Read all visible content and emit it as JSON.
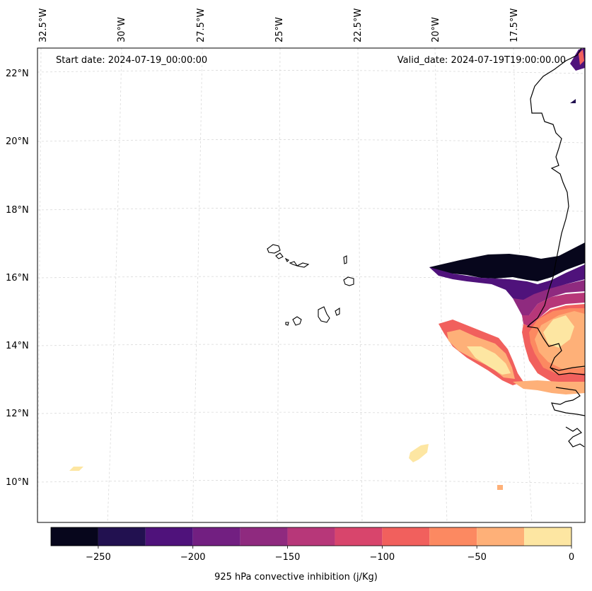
{
  "header": {
    "start_date": "Start date: 2024-07-19_00:00:00",
    "valid_date": "Valid_date: 2024-07-19T19:00:00.00"
  },
  "longitude_labels": [
    "32.5°W",
    "30°W",
    "27.5°W",
    "25°W",
    "22.5°W",
    "20°W",
    "17.5°W"
  ],
  "latitude_labels": [
    "22°N",
    "20°N",
    "18°N",
    "16°N",
    "14°N",
    "12°N",
    "10°N"
  ],
  "colorbar": {
    "title": "925 hPa convective inhibition (j/Kg)",
    "tick_labels": [
      "−250",
      "−200",
      "−150",
      "−100",
      "−50",
      "0"
    ],
    "levels": [
      -275,
      -250,
      -225,
      -200,
      -175,
      -150,
      -125,
      -100,
      -75,
      -50,
      -25,
      0
    ],
    "colors": [
      "#07061c",
      "#221150",
      "#4f127b",
      "#721f81",
      "#8f2a7f",
      "#b73779",
      "#d8456c",
      "#f1605d",
      "#fc8961",
      "#feb078",
      "#fde6a2"
    ]
  },
  "map_features": {
    "coastline": "coastline",
    "islands": "cape-verde-islands",
    "cin_field": "convective-inhibition-field"
  }
}
